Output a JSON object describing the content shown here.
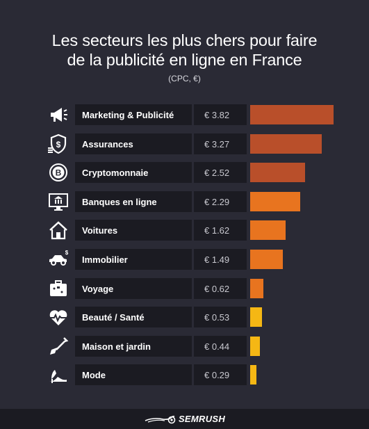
{
  "header": {
    "title_line1": "Les secteurs les plus chers pour faire",
    "title_line2": "de la publicité en ligne en France",
    "subtitle": "(CPC, €)"
  },
  "chart_data": {
    "type": "bar",
    "orientation": "horizontal",
    "title": "Les secteurs les plus chers pour faire de la publicité en ligne en France",
    "subtitle": "(CPC, €)",
    "currency_prefix": "€",
    "xlim": [
      0,
      3.82
    ],
    "categories": [
      "Marketing & Publicité",
      "Assurances",
      "Cryptomonnaie",
      "Banques en ligne",
      "Voitures",
      "Immobilier",
      "Voyage",
      "Beauté / Santé",
      "Maison et jardin",
      "Mode"
    ],
    "values": [
      3.82,
      3.27,
      2.52,
      2.29,
      1.62,
      1.49,
      0.62,
      0.53,
      0.44,
      0.29
    ],
    "value_labels": [
      "€ 3.82",
      "€ 3.27",
      "€ 2.52",
      "€ 2.29",
      "€ 1.62",
      "€ 1.49",
      "€ 0.62",
      "€ 0.53",
      "€ 0.44",
      "€ 0.29"
    ],
    "icons": [
      "megaphone-icon",
      "shield-dollar-icon",
      "bitcoin-icon",
      "bank-monitor-icon",
      "house-icon",
      "car-icon",
      "suitcase-icon",
      "heart-pulse-icon",
      "shovel-icon",
      "high-heel-icon"
    ],
    "bar_colors": [
      "#b94f2a",
      "#b94f2a",
      "#b94f2a",
      "#e8741f",
      "#e8741f",
      "#e8741f",
      "#e8741f",
      "#f5b714",
      "#f5b714",
      "#f5b714"
    ]
  },
  "footer": {
    "brand": "SEMRUSH"
  }
}
